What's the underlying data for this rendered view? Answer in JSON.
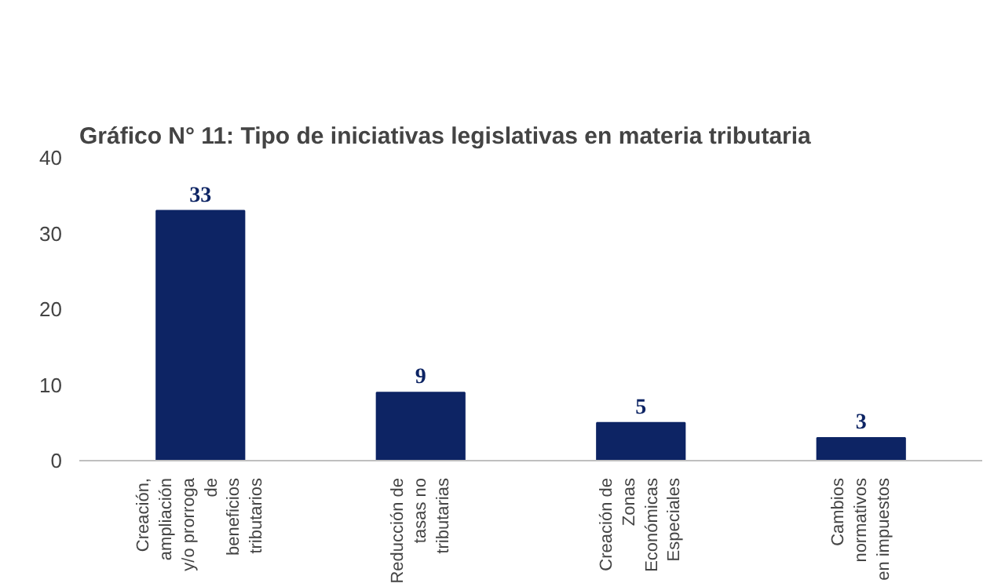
{
  "chart_data": {
    "type": "bar",
    "title": "Gráfico N° 11: Tipo de iniciativas legislativas en materia tributaria",
    "categories": [
      "Creación, ampliación y/o prorroga de beneficios tributarios",
      "Reducción de tasas no tributarias",
      "Creación de Zonas Económicas Especiales",
      "Cambios normativos en impuestos"
    ],
    "values": [
      33,
      9,
      5,
      3
    ],
    "color": "#0d2464",
    "data_labels": true,
    "ylim": [
      0,
      40
    ],
    "yticks": [
      0,
      10,
      20,
      30,
      40
    ],
    "grid": false
  }
}
